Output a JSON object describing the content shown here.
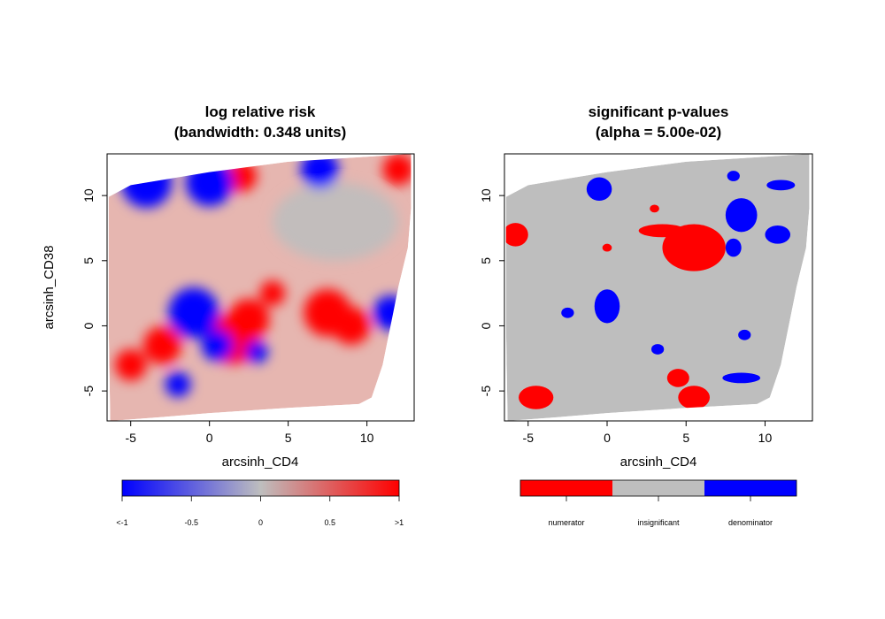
{
  "colors": {
    "numerator": "#ff0000",
    "insignificant": "#bebebe",
    "denominator": "#0000ff",
    "gradient_low": "#0000ff",
    "gradient_mid": "#bebebe",
    "gradient_high": "#ff0000"
  },
  "chart_data": [
    {
      "type": "heatmap",
      "title_line1": "log relative risk",
      "title_line2": "(bandwidth: 0.348 units)",
      "xlabel": "arcsinh_CD4",
      "ylabel": "arcsinh_CD38",
      "xlim": [
        -6.5,
        13
      ],
      "ylim": [
        -7.3,
        13.2
      ],
      "xticks": [
        -5,
        0,
        5,
        10
      ],
      "yticks": [
        -5,
        0,
        5,
        10
      ],
      "xtick_labels": [
        "-5",
        "0",
        "5",
        "10"
      ],
      "ytick_labels": [
        "-5",
        "0",
        "5",
        "10"
      ],
      "legend": {
        "type": "gradient",
        "range": [
          -1,
          1
        ],
        "ticks": [
          -1,
          -0.5,
          0,
          0.5,
          1
        ],
        "tick_labels": [
          "<-1",
          "-0.5",
          "0",
          "0.5",
          ">1"
        ]
      },
      "regions_high": [
        {
          "x": 1.5,
          "y": -1.0,
          "r": 1.6
        },
        {
          "x": 2.5,
          "y": 0.5,
          "r": 1.3
        },
        {
          "x": -3.0,
          "y": -1.5,
          "r": 1.2
        },
        {
          "x": 7.5,
          "y": 1.0,
          "r": 1.5
        },
        {
          "x": 9.0,
          "y": 0.0,
          "r": 1.2
        },
        {
          "x": 2.0,
          "y": 11.5,
          "r": 1.0
        },
        {
          "x": 12.0,
          "y": 12.0,
          "r": 1.0
        },
        {
          "x": -5.0,
          "y": -3.0,
          "r": 1.0
        },
        {
          "x": 4.0,
          "y": 2.5,
          "r": 0.8
        }
      ],
      "regions_low": [
        {
          "x": -1.0,
          "y": 1.0,
          "r": 1.6
        },
        {
          "x": 0.5,
          "y": -1.5,
          "r": 1.0
        },
        {
          "x": -4.0,
          "y": 11.0,
          "r": 1.6
        },
        {
          "x": 0.0,
          "y": 11.0,
          "r": 1.5
        },
        {
          "x": 7.0,
          "y": 12.0,
          "r": 1.2
        },
        {
          "x": 11.5,
          "y": 1.0,
          "r": 1.1
        },
        {
          "x": -2.0,
          "y": -4.5,
          "r": 0.8
        },
        {
          "x": 3.0,
          "y": -2.0,
          "r": 0.7
        }
      ]
    },
    {
      "type": "heatmap",
      "title_line1": "significant p-values",
      "title_line2": "(alpha = 5.00e-02)",
      "xlabel": "arcsinh_CD4",
      "ylabel": "",
      "xlim": [
        -6.5,
        13
      ],
      "ylim": [
        -7.3,
        13.2
      ],
      "xticks": [
        -5,
        0,
        5,
        10
      ],
      "yticks": [
        -5,
        0,
        5,
        10
      ],
      "xtick_labels": [
        "-5",
        "0",
        "5",
        "10"
      ],
      "ytick_labels": [
        "-5",
        "0",
        "5",
        "10"
      ],
      "legend": {
        "type": "categorical",
        "labels": [
          "numerator",
          "insignificant",
          "denominator"
        ]
      },
      "regions_numerator": [
        {
          "x": 5.5,
          "y": 6.0,
          "rx": 2.0,
          "ry": 1.8
        },
        {
          "x": 3.5,
          "y": 7.3,
          "rx": 1.5,
          "ry": 0.5
        },
        {
          "x": -5.8,
          "y": 7.0,
          "rx": 0.8,
          "ry": 0.9
        },
        {
          "x": -4.5,
          "y": -5.5,
          "rx": 1.1,
          "ry": 0.9
        },
        {
          "x": 5.5,
          "y": -5.5,
          "rx": 1.0,
          "ry": 0.9
        },
        {
          "x": 4.5,
          "y": -4.0,
          "rx": 0.7,
          "ry": 0.7
        },
        {
          "x": 0.0,
          "y": 6.0,
          "rx": 0.3,
          "ry": 0.3
        },
        {
          "x": 3.0,
          "y": 9.0,
          "rx": 0.3,
          "ry": 0.3
        }
      ],
      "regions_denominator": [
        {
          "x": 0.0,
          "y": 1.5,
          "rx": 0.8,
          "ry": 1.3
        },
        {
          "x": -0.5,
          "y": 10.5,
          "rx": 0.8,
          "ry": 0.9
        },
        {
          "x": 8.5,
          "y": 8.5,
          "rx": 1.0,
          "ry": 1.3
        },
        {
          "x": 10.8,
          "y": 7.0,
          "rx": 0.8,
          "ry": 0.7
        },
        {
          "x": 11.0,
          "y": 10.8,
          "rx": 0.9,
          "ry": 0.4
        },
        {
          "x": 8.5,
          "y": -4.0,
          "rx": 1.2,
          "ry": 0.4
        },
        {
          "x": 8.0,
          "y": 6.0,
          "rx": 0.5,
          "ry": 0.7
        },
        {
          "x": -2.5,
          "y": 1.0,
          "rx": 0.4,
          "ry": 0.4
        },
        {
          "x": 8.0,
          "y": 11.5,
          "rx": 0.4,
          "ry": 0.4
        },
        {
          "x": 8.7,
          "y": -0.7,
          "rx": 0.4,
          "ry": 0.4
        },
        {
          "x": 3.2,
          "y": -1.8,
          "rx": 0.4,
          "ry": 0.4
        }
      ]
    }
  ]
}
